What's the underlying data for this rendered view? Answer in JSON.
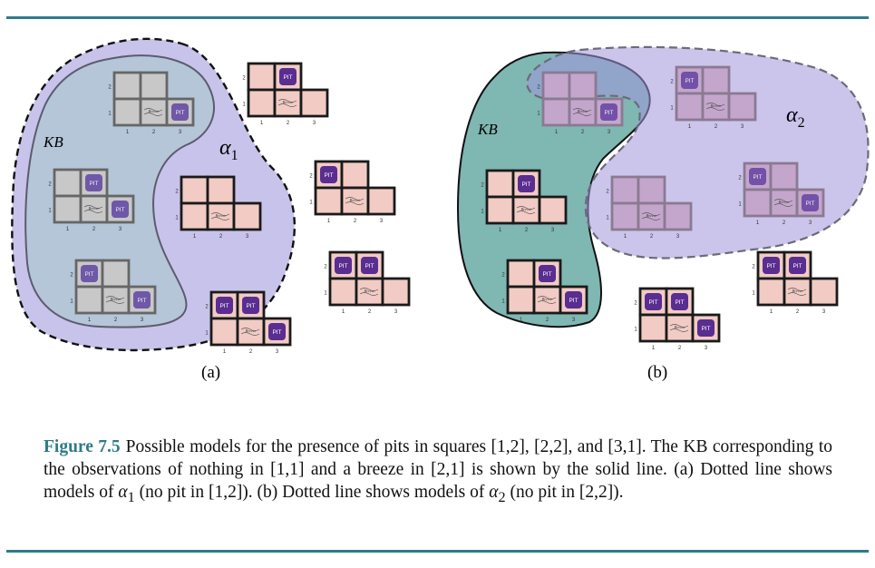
{
  "labels": {
    "kb": "KB",
    "alpha1": "α",
    "alpha1_sub": "1",
    "alpha2": "α",
    "alpha2_sub": "2",
    "panel_a": "(a)",
    "panel_b": "(b)",
    "pit": "PIT",
    "breeze": "Breeze",
    "col1": "1",
    "col2": "2",
    "col3": "3",
    "row1": "1",
    "row2": "2"
  },
  "caption": {
    "figure_label": "Figure 7.5",
    "part1": "Possible models for the presence of pits in squares [1,2], [2,2], and [3,1]. The KB corresponding to the observations of nothing in [1,1] and a breeze in [2,1] is shown by the solid line. (a) Dotted line shows models of ",
    "alpha1": "α",
    "alpha1_sub": "1",
    "part2": " (no pit in [1,2]). (b) Dotted line shows models of ",
    "alpha2": "α",
    "alpha2_sub": "2",
    "part3": " (no pit in [2,2])."
  },
  "colors": {
    "accent": "#2f7b86",
    "pit": "#5a2d91",
    "cell_pink": "#f1cbc4",
    "cell_gray": "#c8c8c8",
    "region_purple": "#c8c3ea",
    "region_kb_blue": "#b4c6d8",
    "region_kb_teal": "#7fb7b2"
  },
  "models": [
    {
      "name": "model-none",
      "pits": []
    },
    {
      "name": "model-31",
      "pits": [
        "3,1"
      ]
    },
    {
      "name": "model-22",
      "pits": [
        "2,2"
      ]
    },
    {
      "name": "model-22-31",
      "pits": [
        "2,2",
        "3,1"
      ]
    },
    {
      "name": "model-12",
      "pits": [
        "1,2"
      ]
    },
    {
      "name": "model-12-31",
      "pits": [
        "1,2",
        "3,1"
      ]
    },
    {
      "name": "model-12-22",
      "pits": [
        "1,2",
        "2,2"
      ]
    },
    {
      "name": "model-12-22-31",
      "pits": [
        "1,2",
        "2,2",
        "3,1"
      ]
    }
  ]
}
